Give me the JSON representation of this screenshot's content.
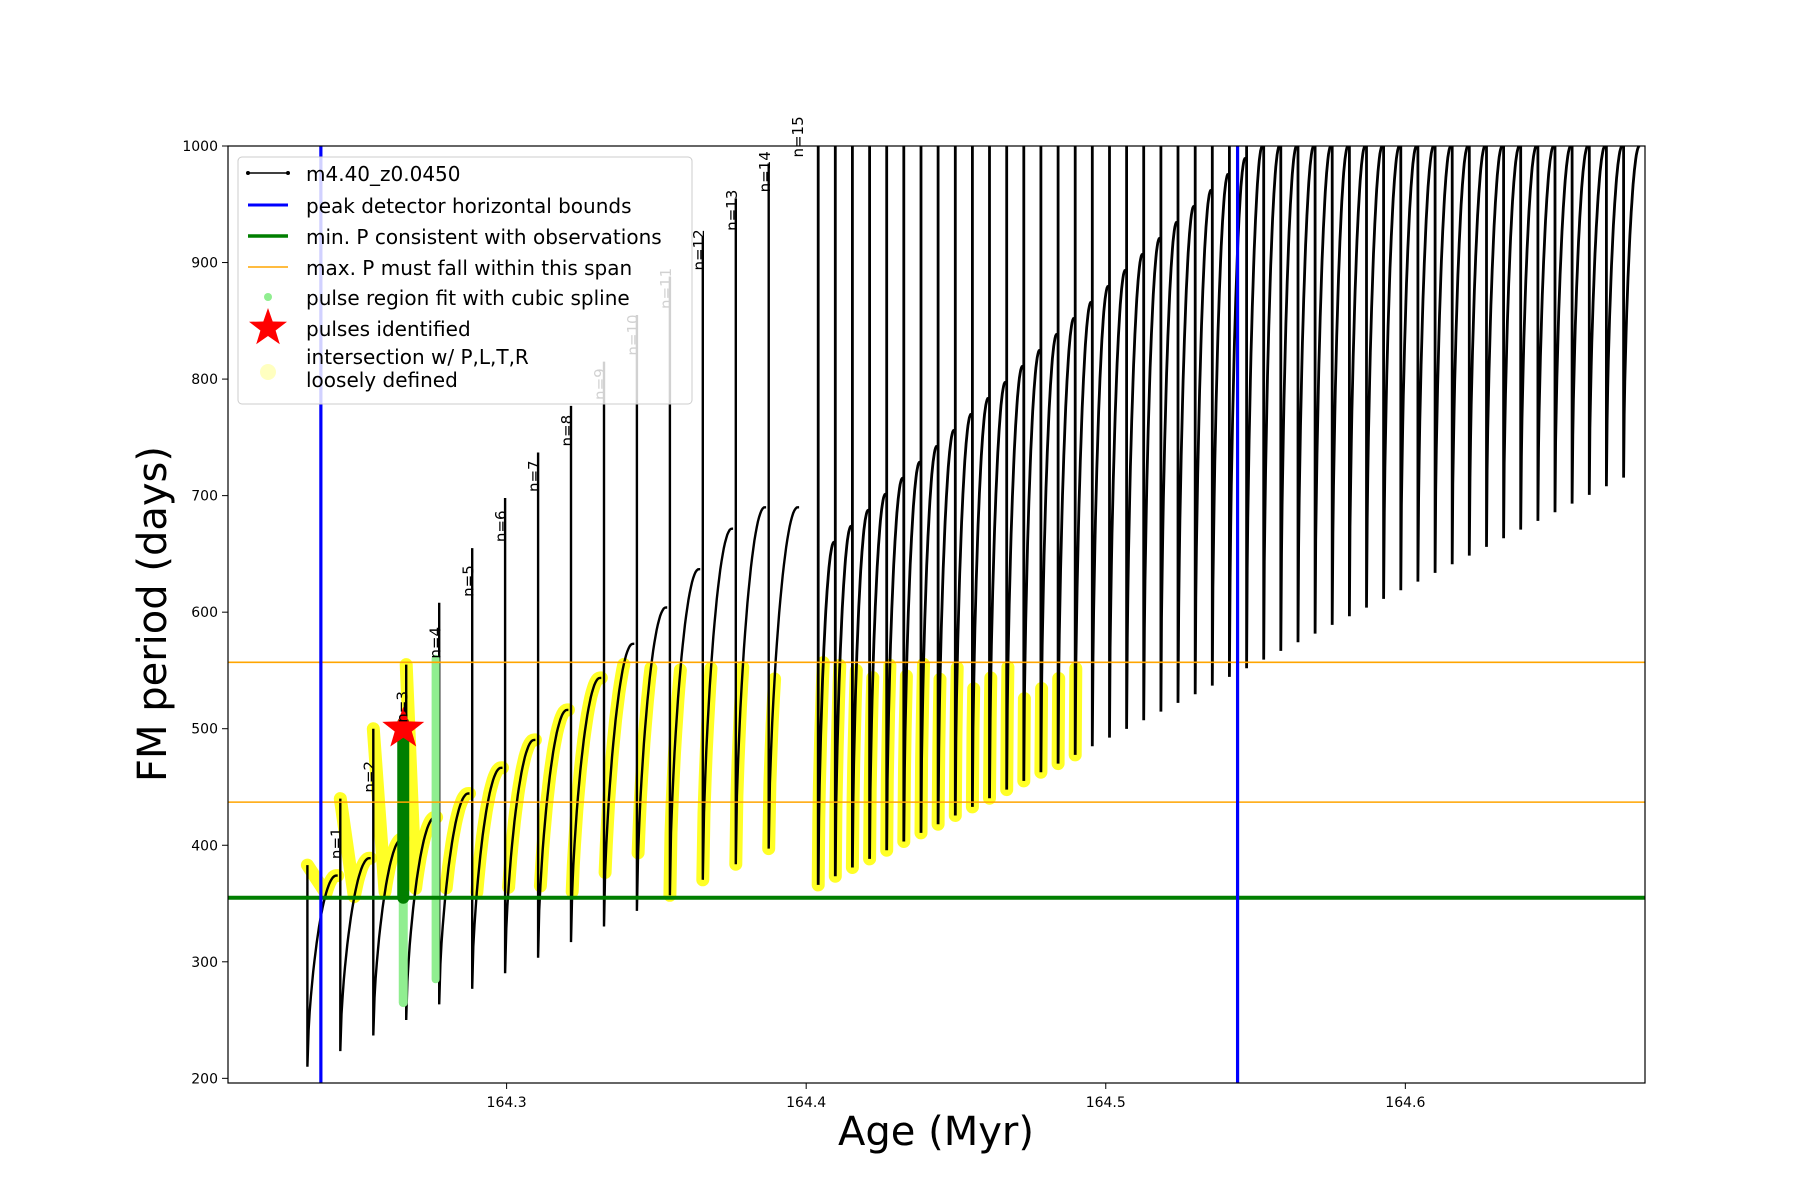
{
  "chart_data": {
    "type": "line",
    "xlabel": "Age (Myr)",
    "ylabel": "FM period (days)",
    "xlim": [
      164.207,
      164.68
    ],
    "ylim": [
      196,
      1000
    ],
    "xticks": [
      164.3,
      164.4,
      164.5,
      164.6
    ],
    "xtick_labels": [
      "164.3",
      "164.4",
      "164.5",
      "164.6"
    ],
    "yticks": [
      200,
      300,
      400,
      500,
      600,
      700,
      800,
      900,
      1000
    ],
    "ytick_labels": [
      "200",
      "300",
      "400",
      "500",
      "600",
      "700",
      "800",
      "900",
      "1000"
    ],
    "grid": false,
    "legend_position": "upper-left",
    "colors": {
      "track": "#000000",
      "bounds": "#0000ff",
      "min_period": "#007f00",
      "max_period_span": "#ffa500",
      "spline": "#90ee90",
      "star": "#ff0000",
      "loose": "#ffff00"
    },
    "series_names": {
      "track": "m4.40_z0.0450",
      "bounds": "peak detector horizontal bounds",
      "min_period": "min. P consistent with observations",
      "max_period_span": "max. P must fall within this span",
      "spline": "pulse region fit with cubic spline",
      "pulses": "pulses identified",
      "loose": "intersection w/ P,L,T,R\nloosely defined"
    },
    "bounds_x": [
      164.238,
      164.544
    ],
    "min_period_y": 355,
    "max_period_span_y": [
      437,
      557
    ],
    "pulses_identified": [
      {
        "x": 164.2655,
        "y": 500
      }
    ],
    "pulse_labels": [
      {
        "text": "n=1",
        "x": 164.2432,
        "y": 383
      },
      {
        "text": "n=2",
        "x": 164.2542,
        "y": 440
      },
      {
        "text": "n=3",
        "x": 164.2652,
        "y": 500
      },
      {
        "text": "n=4",
        "x": 164.2762,
        "y": 555
      },
      {
        "text": "n=5",
        "x": 164.2872,
        "y": 608
      },
      {
        "text": "n=6",
        "x": 164.2982,
        "y": 655
      },
      {
        "text": "n=7",
        "x": 164.3092,
        "y": 698
      },
      {
        "text": "n=8",
        "x": 164.3202,
        "y": 737
      },
      {
        "text": "n=9",
        "x": 164.3312,
        "y": 777
      },
      {
        "text": "n=10",
        "x": 164.3422,
        "y": 815
      },
      {
        "text": "n=11",
        "x": 164.3532,
        "y": 855
      },
      {
        "text": "n=12",
        "x": 164.3642,
        "y": 888
      },
      {
        "text": "n=13",
        "x": 164.3752,
        "y": 922
      },
      {
        "text": "n=14",
        "x": 164.3862,
        "y": 955
      },
      {
        "text": "n=15",
        "x": 164.3972,
        "y": 985
      }
    ],
    "track": {
      "x_start": 164.2335,
      "pulse_spacing": 0.011,
      "n_pulses_with_labels": 15,
      "wave_start_x": 164.404,
      "wave_spacing": 0.00572,
      "wave_count": 48,
      "min_period_first": 210,
      "min_period_slope": 1215,
      "max_period_first": 345,
      "max_period_slope": 3030
    }
  }
}
